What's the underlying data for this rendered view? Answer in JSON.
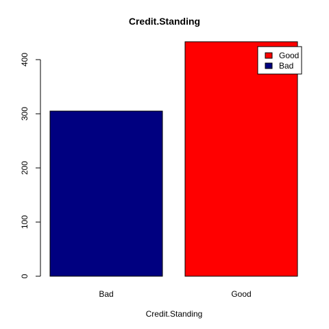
{
  "chart_data": {
    "type": "bar",
    "title": "Credit.Standing",
    "xlabel": "Credit.Standing",
    "ylabel": "",
    "categories": [
      "Bad",
      "Good"
    ],
    "values": [
      305,
      433
    ],
    "ylim": [
      0,
      450
    ],
    "yticks": [
      0,
      100,
      200,
      300,
      400
    ],
    "grid": false,
    "legend_placement": "top-right",
    "legend": [
      {
        "label": "Good",
        "color": "#ff0000"
      },
      {
        "label": "Bad",
        "color": "#000080"
      }
    ],
    "colors": {
      "Bad": "#000080",
      "Good": "#ff0000"
    }
  }
}
